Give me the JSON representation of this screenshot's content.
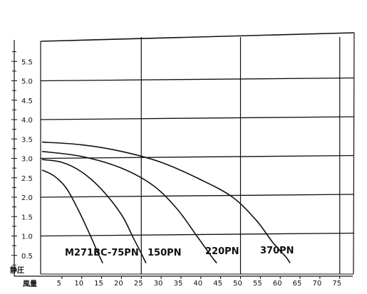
{
  "chart_data": {
    "type": "line",
    "title": "",
    "xlabel": "風量",
    "ylabel": "静圧",
    "xlim": [
      0,
      78
    ],
    "ylim": [
      0,
      6
    ],
    "x_ticks": [
      5,
      10,
      15,
      20,
      25,
      30,
      35,
      40,
      45,
      50,
      55,
      60,
      65,
      70,
      75
    ],
    "x_tick_labels": [
      "5",
      "10",
      "15",
      "20",
      "25",
      "30",
      "35",
      "40",
      "45",
      "50",
      "55",
      "60",
      "65",
      "70",
      "75"
    ],
    "y_ticks": [
      0.5,
      1.0,
      1.5,
      2.0,
      2.5,
      3.0,
      3.5,
      4.0,
      4.5,
      5.0,
      5.5
    ],
    "y_tick_labels": [
      "0.5",
      "1.0",
      "1.5",
      "2.0",
      "2.5",
      "3.0",
      "3.5",
      "4.0",
      "4.5",
      "5.0",
      "5.5"
    ],
    "grid": {
      "horizontal_major": [
        1,
        2,
        3,
        4,
        5
      ],
      "vertical_major": [
        25,
        50,
        75
      ]
    },
    "series": [
      {
        "name": "M271BC-75PN",
        "points": [
          [
            0,
            2.7
          ],
          [
            3,
            2.55
          ],
          [
            6,
            2.25
          ],
          [
            9,
            1.7
          ],
          [
            12,
            1.05
          ],
          [
            14,
            0.58
          ],
          [
            15.3,
            0.3
          ]
        ]
      },
      {
        "name": "150PN",
        "points": [
          [
            0,
            2.97
          ],
          [
            5,
            2.9
          ],
          [
            10,
            2.65
          ],
          [
            15,
            2.2
          ],
          [
            20,
            1.55
          ],
          [
            23,
            0.95
          ],
          [
            25,
            0.55
          ],
          [
            26.2,
            0.3
          ]
        ]
      },
      {
        "name": "220PN",
        "points": [
          [
            0,
            3.18
          ],
          [
            10,
            3.05
          ],
          [
            20,
            2.75
          ],
          [
            28,
            2.3
          ],
          [
            34,
            1.7
          ],
          [
            39,
            1.0
          ],
          [
            42.5,
            0.5
          ],
          [
            44,
            0.3
          ]
        ]
      },
      {
        "name": "370PN",
        "points": [
          [
            0,
            3.42
          ],
          [
            10,
            3.35
          ],
          [
            20,
            3.18
          ],
          [
            30,
            2.9
          ],
          [
            40,
            2.45
          ],
          [
            48,
            2.0
          ],
          [
            54,
            1.4
          ],
          [
            58,
            0.85
          ],
          [
            61.5,
            0.45
          ],
          [
            62.5,
            0.3
          ]
        ]
      }
    ]
  }
}
